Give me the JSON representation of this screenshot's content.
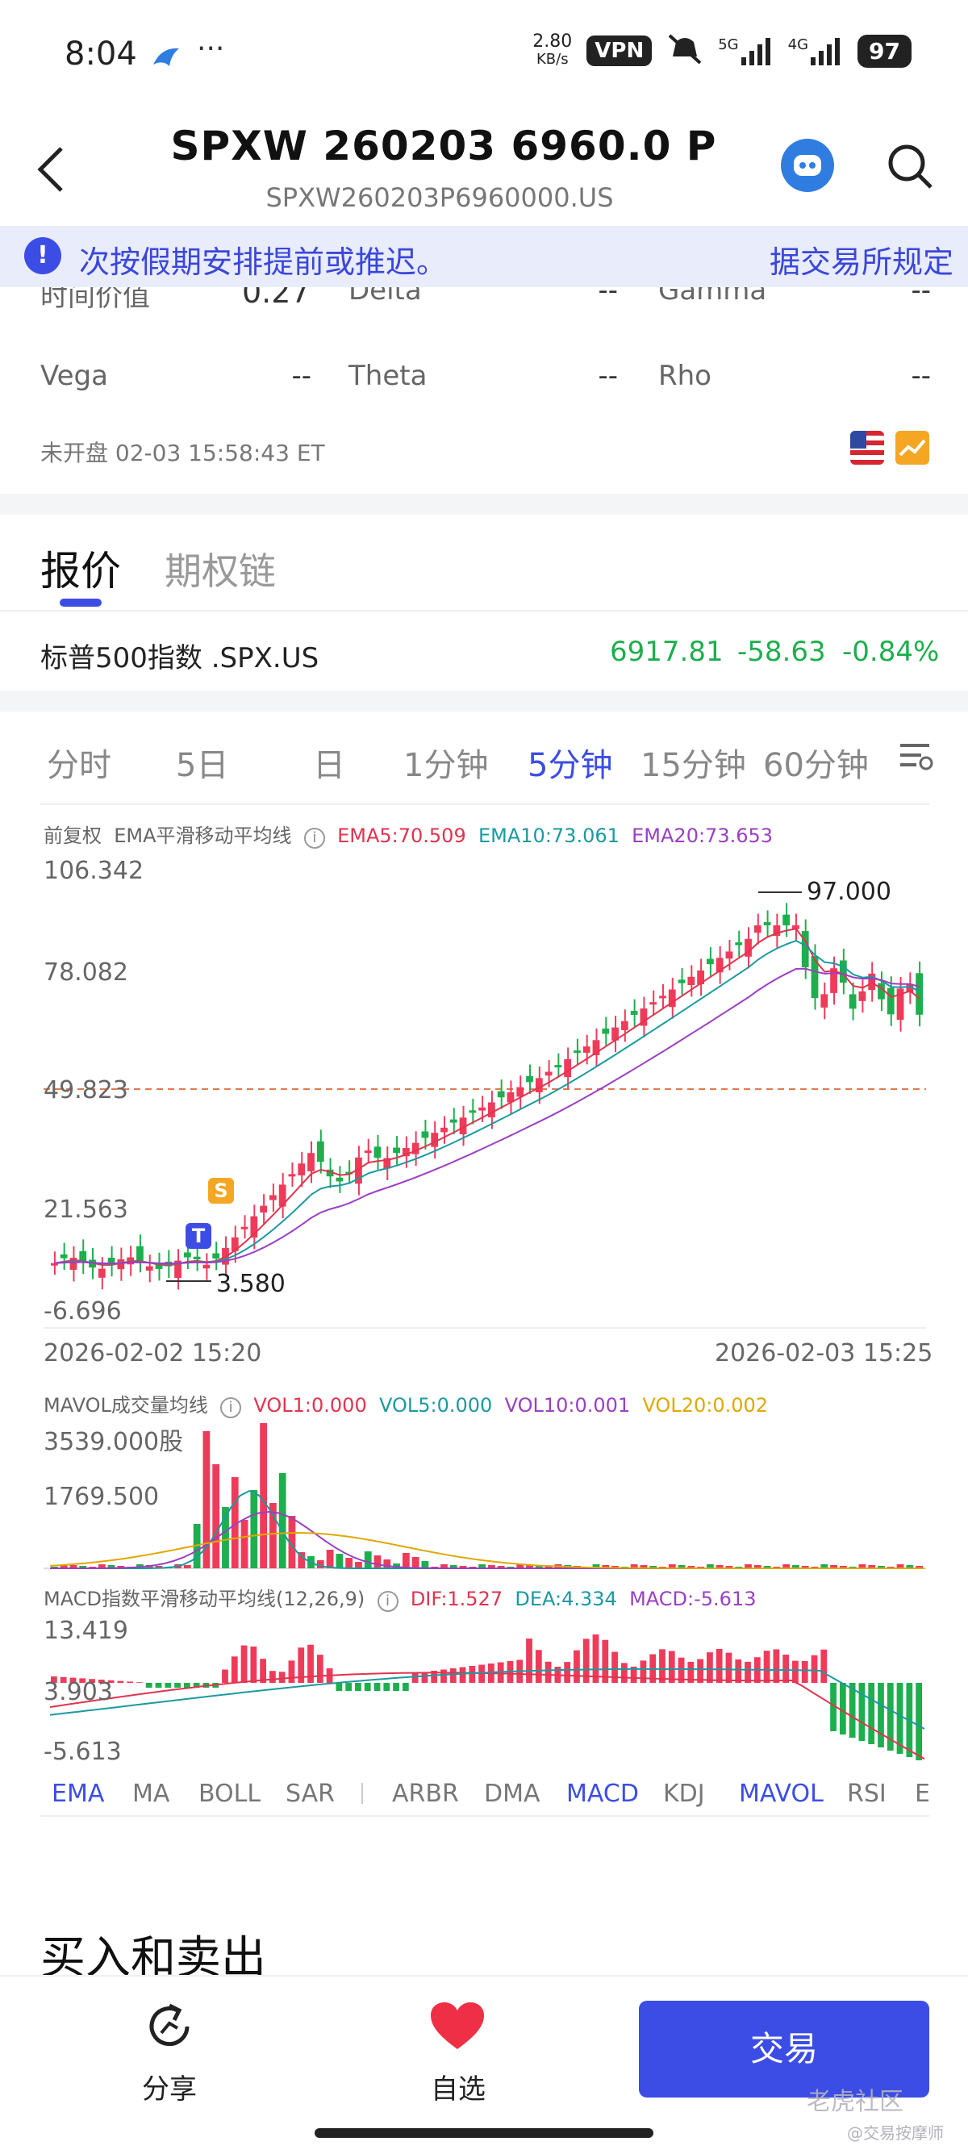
{
  "status_bar": {
    "time": "8:04",
    "net_speed": "2.80",
    "net_unit": "KB/s",
    "vpn": "VPN",
    "signal_a": "5G",
    "signal_b": "4G",
    "battery": "97"
  },
  "header": {
    "title": "SPXW 260203 6960.0 P",
    "subtitle": "SPXW260203P6960000.US"
  },
  "banner": {
    "text_left": "次按假期安排提前或推迟。",
    "text_right": "据交易所规定"
  },
  "greeks": {
    "time_value_label": "时间价值",
    "time_value": "0.27",
    "delta_label": "Delta",
    "delta": "--",
    "gamma_label": "Gamma",
    "gamma": "--",
    "vega_label": "Vega",
    "vega": "--",
    "theta_label": "Theta",
    "theta": "--",
    "rho_label": "Rho",
    "rho": "--"
  },
  "market_note": "未开盘 02-03 15:58:43 ET",
  "tabs": {
    "active": "报价",
    "inactive": "期权链"
  },
  "index_row": {
    "name": "标普500指数 .SPX.US",
    "price": "6917.81",
    "change": "-58.63",
    "change_pct": "-0.84%"
  },
  "periods": [
    "分时",
    "5日",
    "日",
    "1分钟",
    "5分钟",
    "15分钟",
    "60分钟"
  ],
  "main_chart": {
    "adjust_label": "前复权",
    "indicator_label": "EMA平滑移动平均线",
    "ema5": "EMA5:70.509",
    "ema10": "EMA10:73.061",
    "ema20": "EMA20:73.653",
    "y_labels": [
      "106.342",
      "78.082",
      "49.823",
      "21.563",
      "-6.696"
    ],
    "high_marker": "97.000",
    "low_marker": "3.580",
    "badge_s": "S",
    "badge_t": "T",
    "date_left": "2026-02-02 15:20",
    "date_right": "2026-02-03 15:25"
  },
  "volume_chart": {
    "label": "MAVOL成交量均线",
    "vol1": "VOL1:0.000",
    "vol5": "VOL5:0.000",
    "vol10": "VOL10:0.001",
    "vol20": "VOL20:0.002",
    "y_labels": [
      "3539.000股",
      "1769.500"
    ]
  },
  "macd_chart": {
    "label": "MACD指数平滑移动平均线(12,26,9)",
    "dif": "DIF:1.527",
    "dea": "DEA:4.334",
    "macd": "MACD:-5.613",
    "y_labels": [
      "13.419",
      "3.903",
      "-5.613"
    ]
  },
  "indicator_tabs": [
    "EMA",
    "MA",
    "BOLL",
    "SAR",
    "ARBR",
    "DMA",
    "MACD",
    "KDJ",
    "MAVOL",
    "RSI",
    "E"
  ],
  "section_title": "买入和卖出",
  "bottom": {
    "share": "分享",
    "favorite": "自选",
    "trade": "交易",
    "watermark": "老虎社区",
    "watermark_sub": "@交易按摩师"
  },
  "colors": {
    "accent": "#3c4de6",
    "up": "#ef3b5a",
    "down": "#1eae4e",
    "ema5": "#e2334f",
    "ema10": "#1a9aa0",
    "ema20": "#9b3fc3",
    "vol20": "#e0a800"
  }
}
